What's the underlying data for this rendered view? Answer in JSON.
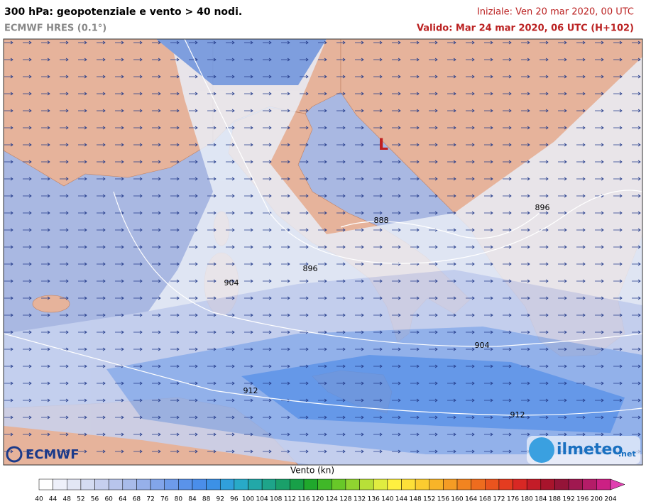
{
  "header": {
    "title": "300 hPa: geopotenziale e vento > 40 nodi.",
    "model": "ECMWF HRES (0.1°)",
    "init": "Iniziale: Ven 20 mar 2020, 00 UTC",
    "valid": "Valido: Mar 24 mar 2020, 06 UTC (H+102)"
  },
  "map": {
    "low_marker": "L",
    "contour_labels": [
      "888",
      "896",
      "896",
      "904",
      "904",
      "912",
      "912"
    ]
  },
  "logos": {
    "left": "ECMWF",
    "right": "ilmeteo",
    "right_suffix": ".net"
  },
  "colorbar": {
    "label": "Vento (kn)",
    "ticks": [
      40,
      44,
      48,
      52,
      56,
      60,
      64,
      68,
      72,
      76,
      80,
      84,
      88,
      92,
      96,
      100,
      104,
      108,
      112,
      116,
      120,
      124,
      128,
      132,
      136,
      140,
      144,
      148,
      152,
      156,
      160,
      164,
      168,
      172,
      176,
      180,
      184,
      188,
      192,
      196,
      200,
      204
    ],
    "colors": [
      "#ffffff",
      "#eef0fa",
      "#e2e6f5",
      "#d4dbf1",
      "#c6cfee",
      "#b8c5ec",
      "#a8bbea",
      "#96b0ea",
      "#82a5ea",
      "#6d9bea",
      "#5a93ea",
      "#4a8eea",
      "#3c91e6",
      "#30a0dc",
      "#28aac8",
      "#22a8a8",
      "#1ea48a",
      "#1aa06a",
      "#18a048",
      "#20a82c",
      "#40b828",
      "#68c828",
      "#90d430",
      "#b8e038",
      "#e0ec40",
      "#fff040",
      "#fde038",
      "#fbcc30",
      "#f8b428",
      "#f59c24",
      "#f28420",
      "#ee6c1e",
      "#ea541e",
      "#e43c20",
      "#d82824",
      "#c41c28",
      "#a8142c",
      "#941438",
      "#a01850",
      "#b41c68",
      "#cc2084",
      "#e040b0"
    ]
  }
}
